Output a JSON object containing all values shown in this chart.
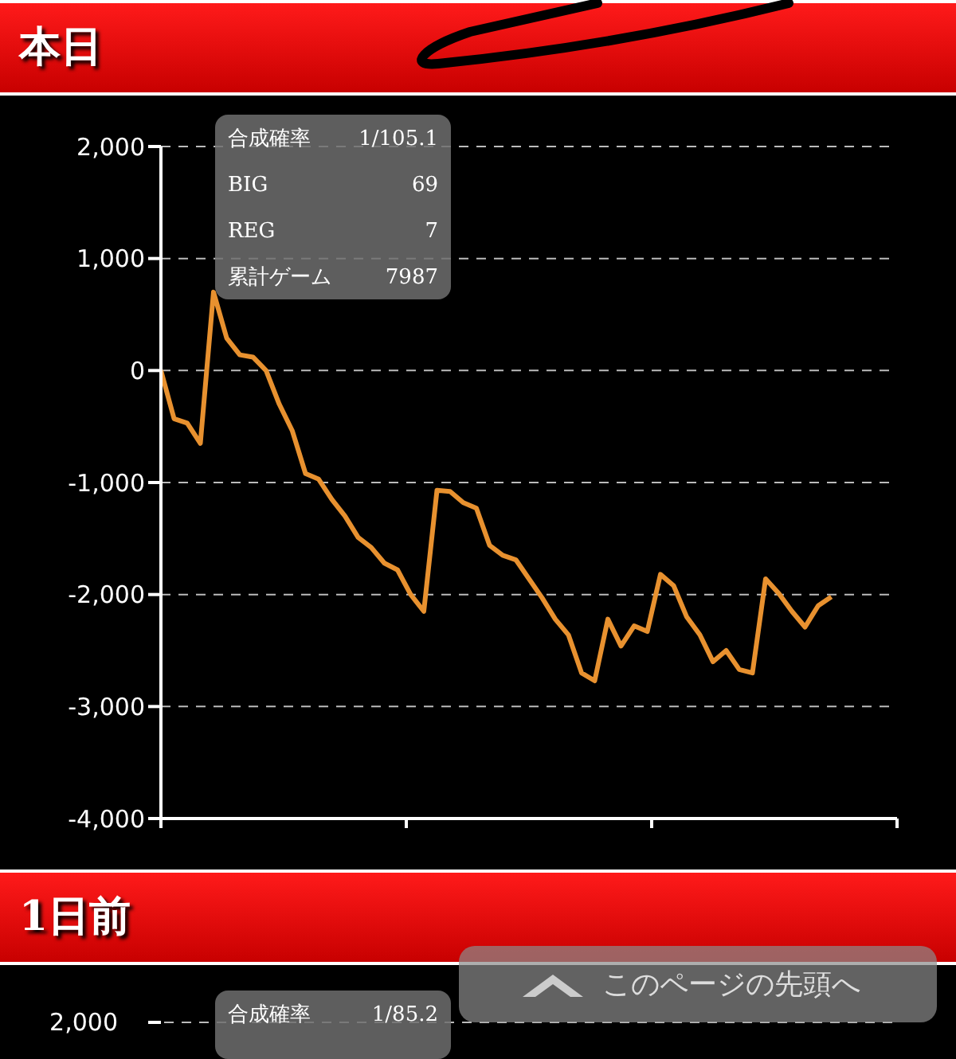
{
  "chart_data": {
    "type": "line",
    "title": "本日",
    "categories": [
      null,
      null,
      null,
      null,
      null,
      null,
      null,
      null,
      null,
      null,
      null,
      null,
      null,
      null,
      null,
      null,
      null,
      null,
      null,
      null,
      null,
      null,
      null,
      null,
      null,
      null,
      null,
      null,
      null,
      null,
      null,
      null,
      null,
      null,
      null,
      null,
      null,
      null,
      null,
      null,
      null,
      null,
      null,
      null,
      null,
      null,
      null,
      null,
      null,
      null,
      null,
      null,
      null,
      null,
      null,
      null,
      null
    ],
    "series": [
      {
        "color": "#e8912f",
        "values": [
          0,
          -430,
          -470,
          -650,
          700,
          290,
          140,
          120,
          0,
          -300,
          -540,
          -920,
          -970,
          -1150,
          -1300,
          -1490,
          -1580,
          -1720,
          -1780,
          -2000,
          -2150,
          -1070,
          -1080,
          -1180,
          -1230,
          -1560,
          -1650,
          -1690,
          -1860,
          -2030,
          -2220,
          -2360,
          -2700,
          -2770,
          -2220,
          -2460,
          -2280,
          -2330,
          -1820,
          -1920,
          -2200,
          -2360,
          -2600,
          -2500,
          -2670,
          -2700,
          -1860,
          -1990,
          -2150,
          -2290,
          -2100,
          -2020,
          null,
          null,
          null,
          null,
          null
        ]
      }
    ],
    "ylim": [
      -4000,
      2000
    ],
    "yticks": [
      {
        "value": -4000,
        "label": "-4,000"
      },
      {
        "value": -3000,
        "label": "-3,000"
      },
      {
        "value": -2000,
        "label": "-2,000"
      },
      {
        "value": -1000,
        "label": "-1,000"
      },
      0,
      {
        "value": 1000,
        "label": "1,000"
      },
      {
        "value": 2000,
        "label": "2,000"
      }
    ],
    "grid": "y",
    "marker": "none",
    "line_style": "solid",
    "annotations": [
      "合成確率",
      "1/105.1",
      "BIG",
      "69",
      "REG",
      "7",
      "累計ゲーム",
      "7987",
      "1日前",
      "2,000",
      "合成確率",
      "1/85.2",
      "このページの先頭へ"
    ]
  }
}
